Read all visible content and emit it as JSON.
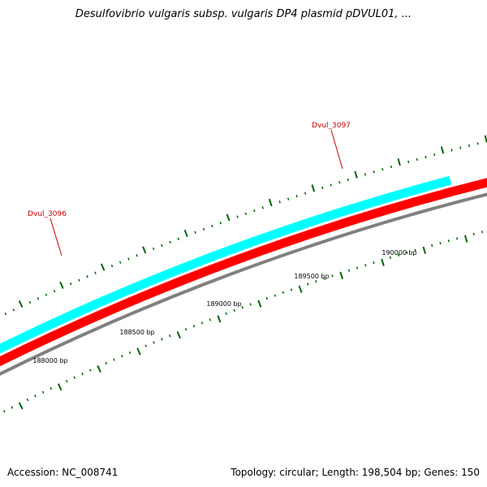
{
  "title": "Desulfovibrio vulgaris subsp. vulgaris DP4 plasmid pDVUL01, ...",
  "footer": {
    "accession": "Accession: NC_008741",
    "topology": "Topology: circular; Length: 198,504 bp; Genes: 150"
  },
  "colors": {
    "backbone": "#808080",
    "forward_gene": "#ff0000",
    "reverse_gene": "#00ffff",
    "tick": "#006600",
    "gene_label": "#cc0000"
  },
  "genes": [
    {
      "name": "Dvul_3096",
      "strand": "reverse",
      "color": "#00ffff"
    },
    {
      "name": "Dvul_3097",
      "strand": "forward",
      "color": "#ff0000"
    }
  ],
  "scale_labels": [
    "188000 bp",
    "188500 bp",
    "189000 bp",
    "189500 bp",
    "190000 bp"
  ]
}
